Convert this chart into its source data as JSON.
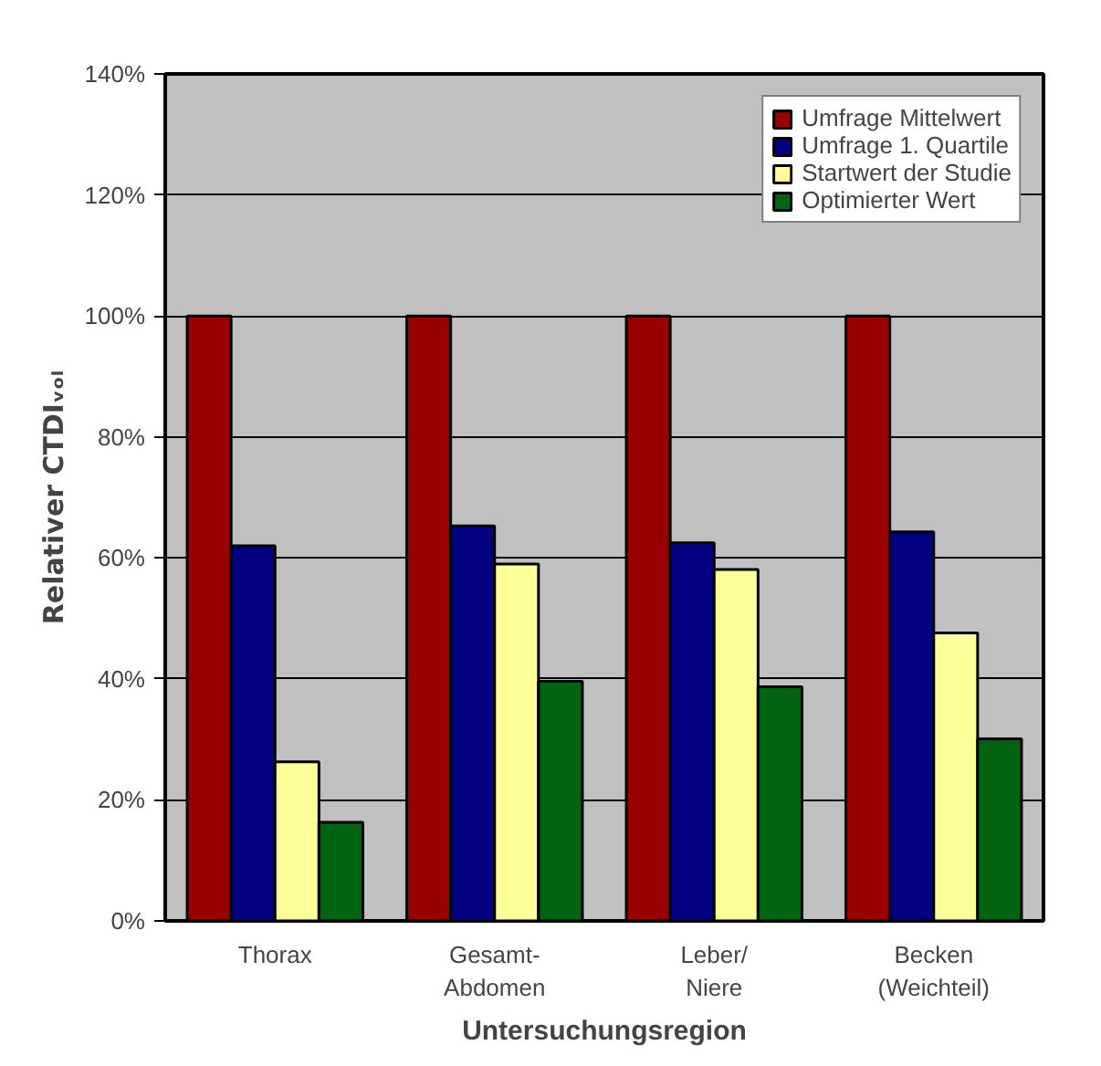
{
  "chart_data": {
    "type": "bar",
    "xlabel": "Untersuchungsregion",
    "ylabel": "Relativer CTDIᵥₒₗ",
    "categories": [
      "Thorax",
      "Gesamt-\nAbdomen",
      "Leber/\nNiere",
      "Becken\n(Weichteil)"
    ],
    "series": [
      {
        "name": "Umfrage Mittelwert",
        "color": "#990000",
        "values": [
          100,
          100,
          100,
          100
        ]
      },
      {
        "name": "Umfrage 1. Quartile",
        "color": "#000080",
        "values": [
          62,
          65.3,
          62.5,
          64.3
        ]
      },
      {
        "name": "Startwert der Studie",
        "color": "#ffff99",
        "values": [
          26.3,
          59,
          58.1,
          47.6
        ]
      },
      {
        "name": "Optimierter Wert",
        "color": "#006411",
        "values": [
          16.3,
          39.6,
          38.7,
          30.1
        ]
      }
    ],
    "ylim": [
      0,
      140
    ],
    "yticks": [
      {
        "value": 0,
        "label": "0%"
      },
      {
        "value": 20,
        "label": "20%"
      },
      {
        "value": 40,
        "label": "40%"
      },
      {
        "value": 60,
        "label": "60%"
      },
      {
        "value": 80,
        "label": "80%"
      },
      {
        "value": 100,
        "label": "100%"
      },
      {
        "value": 120,
        "label": "120%"
      },
      {
        "value": 140,
        "label": "140%"
      }
    ],
    "grid": "y",
    "legend": "top right"
  }
}
